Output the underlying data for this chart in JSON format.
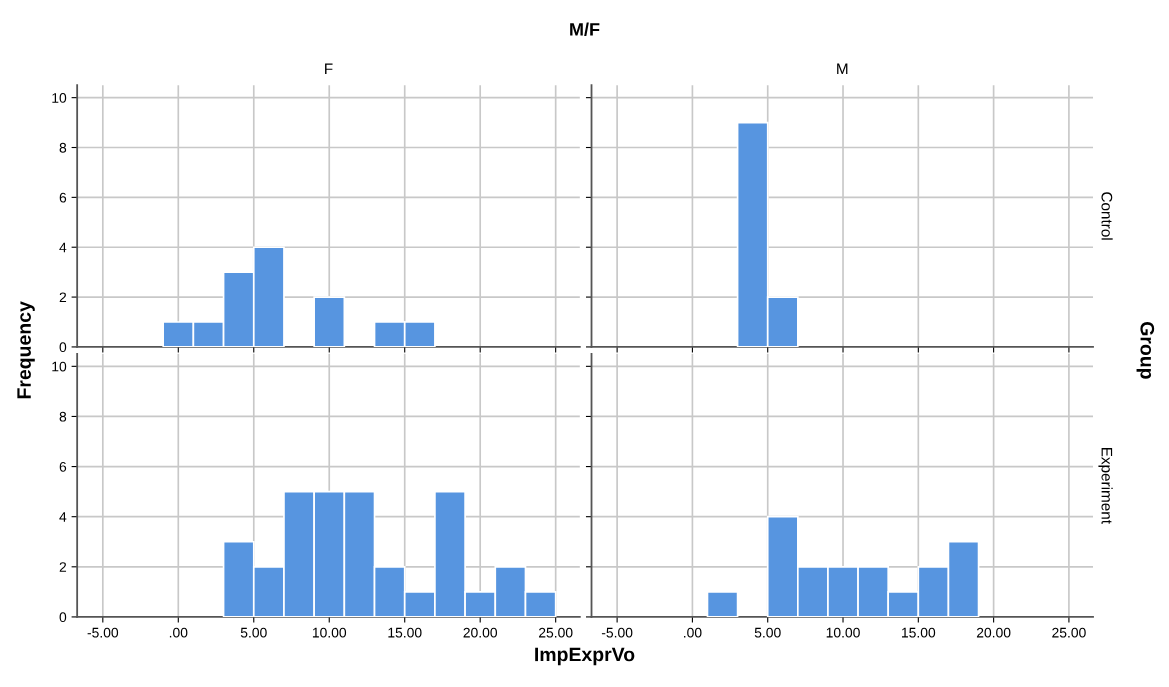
{
  "chart_data": [
    {
      "type": "histogram",
      "title": "F",
      "annotations": [
        "M/F"
      ],
      "ylabel": "Frequency",
      "bins": [
        -1,
        1,
        3,
        5,
        7,
        9,
        11,
        13,
        15,
        17
      ],
      "values": [
        1,
        1,
        3,
        4,
        0,
        2,
        0,
        1,
        1
      ],
      "color": "#5795e0",
      "xlim": [
        -6.7,
        26.6
      ],
      "ylim": [
        0,
        10.5
      ],
      "xticks": [
        {
          "value": -5,
          "label": null
        },
        {
          "value": 0,
          "label": null
        },
        {
          "value": 5,
          "label": null
        },
        {
          "value": 10,
          "label": null
        },
        {
          "value": 15,
          "label": null
        },
        {
          "value": 20,
          "label": null
        },
        {
          "value": 25,
          "label": null
        }
      ],
      "yticks": [
        0,
        2,
        4,
        6,
        8,
        10
      ],
      "grid": true,
      "tick_labels": "y"
    },
    {
      "type": "histogram",
      "title": "M",
      "annotations": [
        "Control",
        "Group"
      ],
      "bins": [
        3,
        5,
        7
      ],
      "values": [
        9,
        2
      ],
      "color": "#5795e0",
      "xlim": [
        -6.7,
        26.6
      ],
      "ylim": [
        0,
        10.5
      ],
      "xticks": [
        {
          "value": -5,
          "label": null
        },
        {
          "value": 0,
          "label": null
        },
        {
          "value": 5,
          "label": null
        },
        {
          "value": 10,
          "label": null
        },
        {
          "value": 15,
          "label": null
        },
        {
          "value": 20,
          "label": null
        },
        {
          "value": 25,
          "label": null
        }
      ],
      "yticks": [
        {
          "value": 0,
          "label": null
        },
        {
          "value": 2,
          "label": null
        },
        {
          "value": 4,
          "label": null
        },
        {
          "value": 6,
          "label": null
        },
        {
          "value": 8,
          "label": null
        },
        {
          "value": 10,
          "label": null
        }
      ],
      "grid": true,
      "tick_labels": false
    },
    {
      "type": "histogram",
      "xlabel": "ImpExprVo",
      "bins": [
        3,
        5,
        7,
        9,
        11,
        13,
        15,
        17,
        19,
        21,
        23,
        25
      ],
      "values": [
        3,
        2,
        5,
        5,
        5,
        2,
        1,
        5,
        1,
        2,
        1
      ],
      "color": "#5795e0",
      "xlim": [
        -6.7,
        26.6
      ],
      "ylim": [
        0,
        10.5
      ],
      "xticks": [
        {
          "value": -5,
          "label": "-5.00"
        },
        {
          "value": 0,
          "label": ".00"
        },
        {
          "value": 5,
          "label": "5.00"
        },
        {
          "value": 10,
          "label": "10.00"
        },
        {
          "value": 15,
          "label": "15.00"
        },
        {
          "value": 20,
          "label": "20.00"
        },
        {
          "value": 25,
          "label": "25.00"
        }
      ],
      "yticks": [
        0,
        2,
        4,
        6,
        8,
        10
      ],
      "grid": true
    },
    {
      "type": "histogram",
      "annotations": [
        "Experiment"
      ],
      "bins": [
        1,
        3,
        5,
        7,
        9,
        11,
        13,
        15,
        17,
        19
      ],
      "values": [
        1,
        0,
        4,
        2,
        2,
        2,
        1,
        2,
        3
      ],
      "color": "#5795e0",
      "xlim": [
        -6.7,
        26.6
      ],
      "ylim": [
        0,
        10.5
      ],
      "xticks": [
        {
          "value": -5,
          "label": "-5.00"
        },
        {
          "value": 0,
          "label": ".00"
        },
        {
          "value": 5,
          "label": "5.00"
        },
        {
          "value": 10,
          "label": "10.00"
        },
        {
          "value": 15,
          "label": "15.00"
        },
        {
          "value": 20,
          "label": "20.00"
        },
        {
          "value": 25,
          "label": "25.00"
        }
      ],
      "yticks": [
        {
          "value": 0,
          "label": null
        },
        {
          "value": 2,
          "label": null
        },
        {
          "value": 4,
          "label": null
        },
        {
          "value": 6,
          "label": null
        },
        {
          "value": 8,
          "label": null
        },
        {
          "value": 10,
          "label": null
        }
      ],
      "grid": true,
      "tick_labels": "x"
    }
  ]
}
